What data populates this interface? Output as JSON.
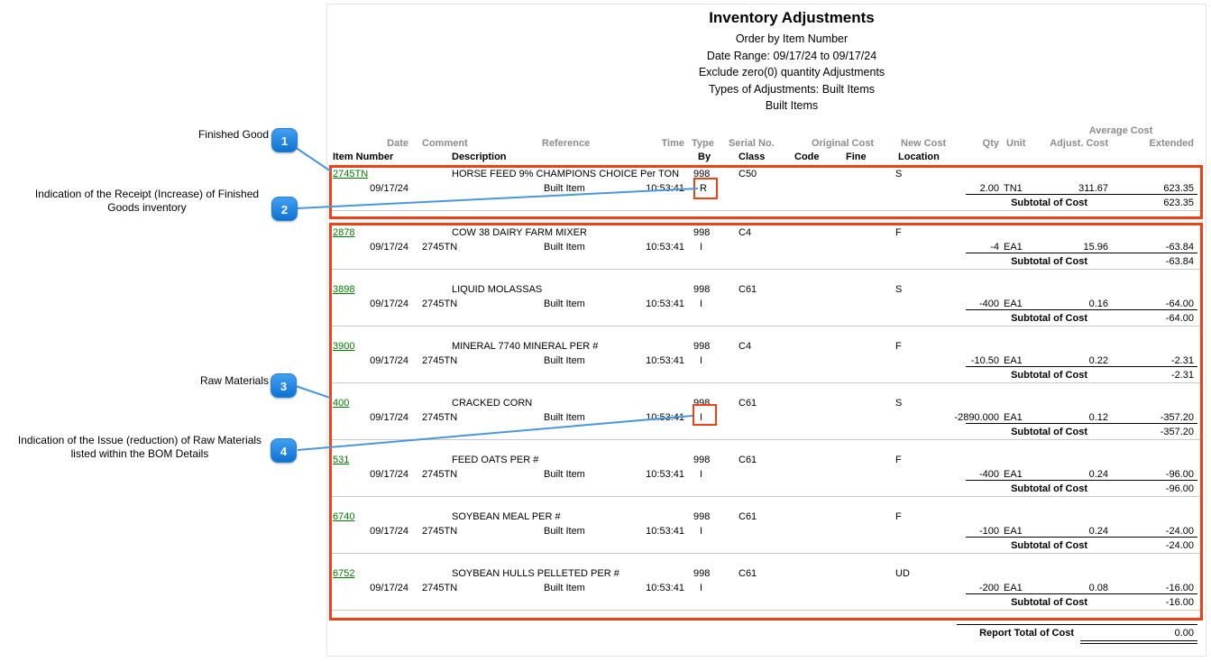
{
  "report": {
    "title": "Inventory Adjustments",
    "subtitle_lines": [
      "Order by Item Number",
      "Date Range: 09/17/24 to 09/17/24",
      "Exclude zero(0) quantity Adjustments",
      "Types of Adjustments: Built Items",
      "Built Items"
    ],
    "headers": {
      "average_cost": "Average Cost",
      "date": "Date",
      "comment": "Comment",
      "reference": "Reference",
      "time": "Time",
      "type": "Type",
      "serial_no": "Serial No.",
      "original_cost": "Original Cost",
      "new_cost": "New Cost",
      "qty": "Qty",
      "unit": "Unit",
      "adjust_cost": "Adjust. Cost",
      "extended": "Extended",
      "item_number": "Item Number",
      "description": "Description",
      "by": "By",
      "class": "Class",
      "code": "Code",
      "fine": "Fine",
      "location": "Location"
    },
    "labels": {
      "subtotal": "Subtotal of Cost",
      "report_total": "Report Total of Cost"
    },
    "report_total_value": "0.00",
    "rows": [
      {
        "item_number": "2745TN",
        "description": "HORSE FEED 9% CHAMPIONS CHOICE Per TON",
        "type": "998",
        "class": "C50",
        "location": "S",
        "date": "09/17/24",
        "comment": "",
        "reference": "Built Item",
        "time": "10:53:41",
        "by": "R",
        "qty": "2.00",
        "unit": "TN1",
        "adjust_cost": "311.67",
        "extended": "623.35",
        "subtotal": "623.35"
      },
      {
        "item_number": "2878",
        "description": "COW 38 DAIRY FARM MIXER",
        "type": "998",
        "class": "C4",
        "location": "F",
        "date": "09/17/24",
        "comment": "2745TN",
        "reference": "Built Item",
        "time": "10:53:41",
        "by": "I",
        "qty": "-4",
        "unit": "EA1",
        "adjust_cost": "15.96",
        "extended": "-63.84",
        "subtotal": "-63.84"
      },
      {
        "item_number": "3898",
        "description": "LIQUID MOLASSAS",
        "type": "998",
        "class": "C61",
        "location": "S",
        "date": "09/17/24",
        "comment": "2745TN",
        "reference": "Built Item",
        "time": "10:53:41",
        "by": "I",
        "qty": "-400",
        "unit": "EA1",
        "adjust_cost": "0.16",
        "extended": "-64.00",
        "subtotal": "-64.00"
      },
      {
        "item_number": "3900",
        "description": "MINERAL 7740 MINERAL PER #",
        "type": "998",
        "class": "C4",
        "location": "F",
        "date": "09/17/24",
        "comment": "2745TN",
        "reference": "Built Item",
        "time": "10:53:41",
        "by": "I",
        "qty": "-10.50",
        "unit": "EA1",
        "adjust_cost": "0.22",
        "extended": "-2.31",
        "subtotal": "-2.31"
      },
      {
        "item_number": "400",
        "description": "CRACKED CORN",
        "type": "998",
        "class": "C61",
        "location": "S",
        "date": "09/17/24",
        "comment": "2745TN",
        "reference": "Built Item",
        "time": "10:53:41",
        "by": "I",
        "qty": "-2890.000",
        "unit": "EA1",
        "adjust_cost": "0.12",
        "extended": "-357.20",
        "subtotal": "-357.20"
      },
      {
        "item_number": "531",
        "description": "FEED OATS PER #",
        "type": "998",
        "class": "C61",
        "location": "F",
        "date": "09/17/24",
        "comment": "2745TN",
        "reference": "Built Item",
        "time": "10:53:41",
        "by": "I",
        "qty": "-400",
        "unit": "EA1",
        "adjust_cost": "0.24",
        "extended": "-96.00",
        "subtotal": "-96.00"
      },
      {
        "item_number": "6740",
        "description": "SOYBEAN MEAL PER #",
        "type": "998",
        "class": "C61",
        "location": "F",
        "date": "09/17/24",
        "comment": "2745TN",
        "reference": "Built Item",
        "time": "10:53:41",
        "by": "I",
        "qty": "-100",
        "unit": "EA1",
        "adjust_cost": "0.24",
        "extended": "-24.00",
        "subtotal": "-24.00"
      },
      {
        "item_number": "6752",
        "description": "SOYBEAN HULLS PELLETED PER #",
        "type": "998",
        "class": "C61",
        "location": "UD",
        "date": "09/17/24",
        "comment": "2745TN",
        "reference": "Built Item",
        "time": "10:53:41",
        "by": "I",
        "qty": "-200",
        "unit": "EA1",
        "adjust_cost": "0.08",
        "extended": "-16.00",
        "subtotal": "-16.00"
      }
    ]
  },
  "callouts": [
    {
      "number": "1",
      "text": "Finished Good"
    },
    {
      "number": "2",
      "text": "Indication of the Receipt (Increase) of Finished Goods inventory"
    },
    {
      "number": "3",
      "text": "Raw Materials"
    },
    {
      "number": "4",
      "text": "Indication of the Issue (reduction) of Raw Materials listed within the BOM Details"
    }
  ],
  "colors": {
    "annotation_red": "#ee4118",
    "callout_blue": "#1b7fe0",
    "leader_line_blue": "#4b96dd",
    "link_green": "#007d00",
    "header_gray": "#8c8c8c"
  }
}
